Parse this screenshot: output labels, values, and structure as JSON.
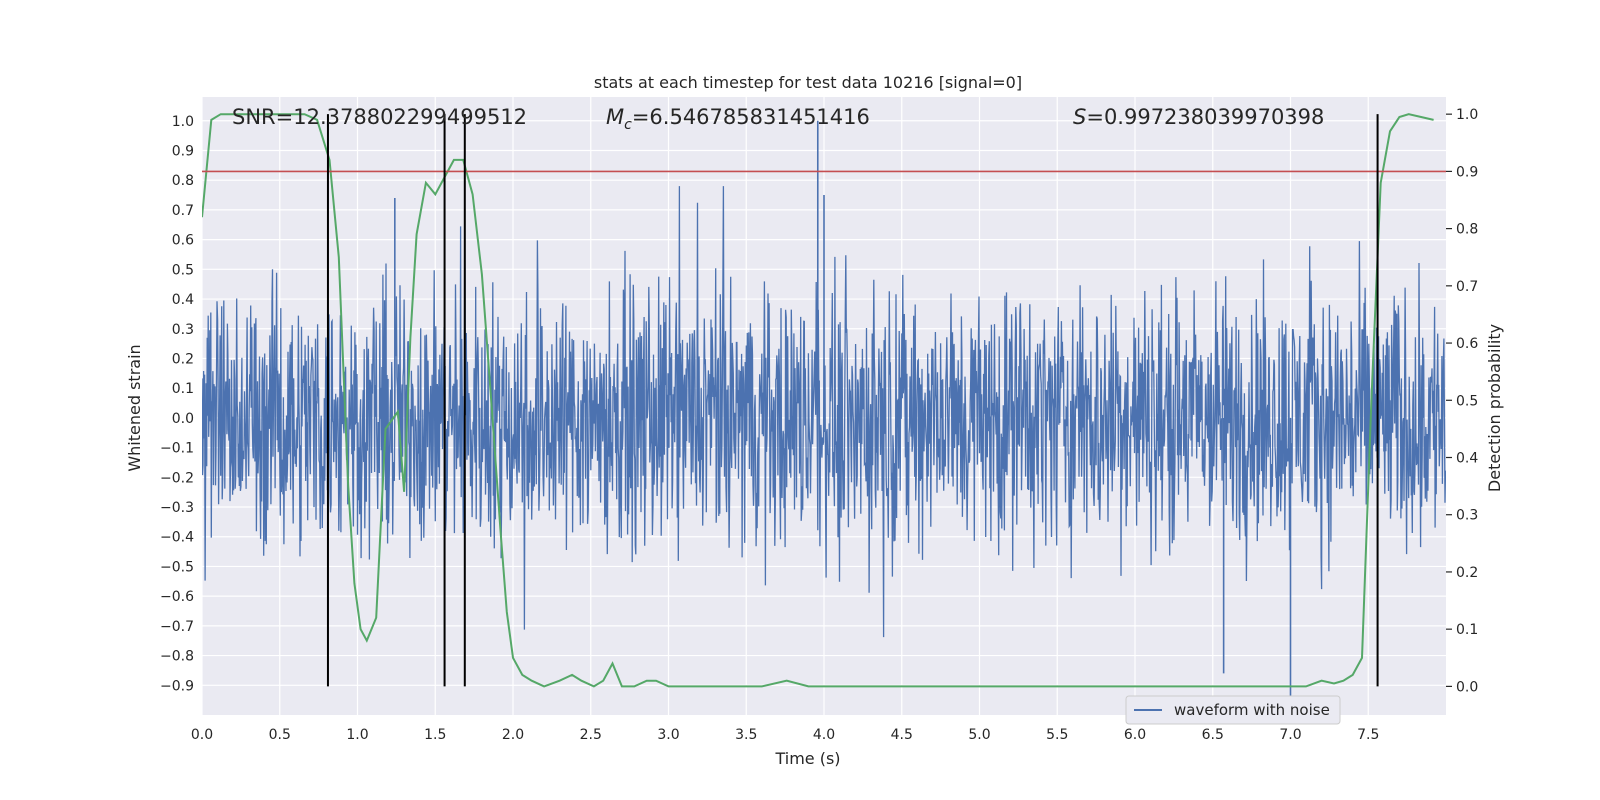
{
  "chart_data": {
    "type": "line",
    "title": "stats at each timestep for test data 10216 [signal=0]",
    "xlabel": "Time (s)",
    "ylabel_left": "Whitened strain",
    "ylabel_right": "Detection probability",
    "xlim": [
      0.0,
      8.0
    ],
    "ylim_left": [
      -1.0,
      1.08
    ],
    "ylim_right": [
      -0.05,
      1.03
    ],
    "x_ticks": [
      0.0,
      0.5,
      1.0,
      1.5,
      2.0,
      2.5,
      3.0,
      3.5,
      4.0,
      4.5,
      5.0,
      5.5,
      6.0,
      6.5,
      7.0,
      7.5
    ],
    "x_tick_labels": [
      "0.0",
      "0.5",
      "1.0",
      "1.5",
      "2.0",
      "2.5",
      "3.0",
      "3.5",
      "4.0",
      "4.5",
      "5.0",
      "5.5",
      "6.0",
      "6.5",
      "7.0",
      "7.5"
    ],
    "y_ticks_left": [
      -0.9,
      -0.8,
      -0.7,
      -0.6,
      -0.5,
      -0.4,
      -0.3,
      -0.2,
      -0.1,
      0.0,
      0.1,
      0.2,
      0.3,
      0.4,
      0.5,
      0.6,
      0.7,
      0.8,
      0.9,
      1.0
    ],
    "y_tick_labels_left": [
      "−0.9",
      "−0.8",
      "−0.7",
      "−0.6",
      "−0.5",
      "−0.4",
      "−0.3",
      "−0.2",
      "−0.1",
      "0.0",
      "0.1",
      "0.2",
      "0.3",
      "0.4",
      "0.5",
      "0.6",
      "0.7",
      "0.8",
      "0.9",
      "1.0"
    ],
    "y_ticks_right": [
      0.0,
      0.1,
      0.2,
      0.3,
      0.4,
      0.5,
      0.6,
      0.7,
      0.8,
      0.9,
      1.0
    ],
    "y_tick_labels_right": [
      "0.0",
      "0.1",
      "0.2",
      "0.3",
      "0.4",
      "0.5",
      "0.6",
      "0.7",
      "0.8",
      "0.9",
      "1.0"
    ],
    "grid": true,
    "legend_placement": "lower-right",
    "annotations": {
      "snr": "SNR=12.378802299499512",
      "mc_symbol": "M",
      "mc_sub": "c",
      "mc_value": "=6.546785831451416",
      "s_symbol": "S",
      "s_value": "=0.997238039970398"
    },
    "series": [
      {
        "name": "waveform with noise",
        "axis": "left",
        "color": "#4c72b0",
        "description_of_values": "noise",
        "band_typical": [
          -0.5,
          0.5
        ],
        "notable_peaks": [
          {
            "x": 1.24,
            "y": 0.74
          },
          {
            "x": 3.96,
            "y": 1.0
          },
          {
            "x": 4.0,
            "y": 0.75
          },
          {
            "x": 6.57,
            "y": -0.86
          },
          {
            "x": 7.0,
            "y": -0.97
          }
        ]
      },
      {
        "name": "",
        "axis": "right",
        "color": "#55a868",
        "x": [
          0.0,
          0.06,
          0.12,
          0.2,
          0.3,
          0.4,
          0.5,
          0.6,
          0.66,
          0.74,
          0.82,
          0.88,
          0.94,
          0.98,
          1.02,
          1.06,
          1.12,
          1.18,
          1.26,
          1.3,
          1.34,
          1.38,
          1.44,
          1.5,
          1.56,
          1.62,
          1.68,
          1.74,
          1.8,
          1.86,
          1.92,
          1.96,
          2.0,
          2.06,
          2.12,
          2.2,
          2.3,
          2.38,
          2.44,
          2.52,
          2.58,
          2.64,
          2.7,
          2.78,
          2.86,
          2.92,
          3.0,
          3.2,
          3.6,
          3.76,
          3.9,
          4.3,
          4.6,
          5.0,
          5.5,
          6.0,
          6.4,
          6.8,
          7.0,
          7.1,
          7.2,
          7.28,
          7.34,
          7.4,
          7.46,
          7.52,
          7.58,
          7.64,
          7.7,
          7.76,
          7.84,
          7.92
        ],
        "y": [
          0.82,
          0.99,
          1.0,
          1.0,
          1.0,
          1.0,
          1.0,
          1.0,
          1.0,
          0.99,
          0.92,
          0.75,
          0.35,
          0.18,
          0.1,
          0.08,
          0.12,
          0.45,
          0.48,
          0.34,
          0.61,
          0.79,
          0.88,
          0.86,
          0.89,
          0.92,
          0.92,
          0.86,
          0.72,
          0.5,
          0.27,
          0.13,
          0.05,
          0.02,
          0.01,
          0.0,
          0.01,
          0.02,
          0.01,
          0.0,
          0.01,
          0.04,
          0.0,
          0.0,
          0.01,
          0.01,
          0.0,
          0.0,
          0.0,
          0.01,
          0.0,
          0.0,
          0.0,
          0.0,
          0.0,
          0.0,
          0.0,
          0.0,
          0.0,
          0.0,
          0.01,
          0.005,
          0.01,
          0.02,
          0.05,
          0.5,
          0.88,
          0.97,
          0.995,
          1.0,
          0.995,
          0.99
        ]
      }
    ],
    "threshold_line": {
      "axis": "right",
      "y": 0.9,
      "color": "#c44e52"
    },
    "vertical_lines": {
      "x": [
        0.81,
        1.56,
        1.69,
        7.56
      ],
      "color": "#000000"
    }
  }
}
